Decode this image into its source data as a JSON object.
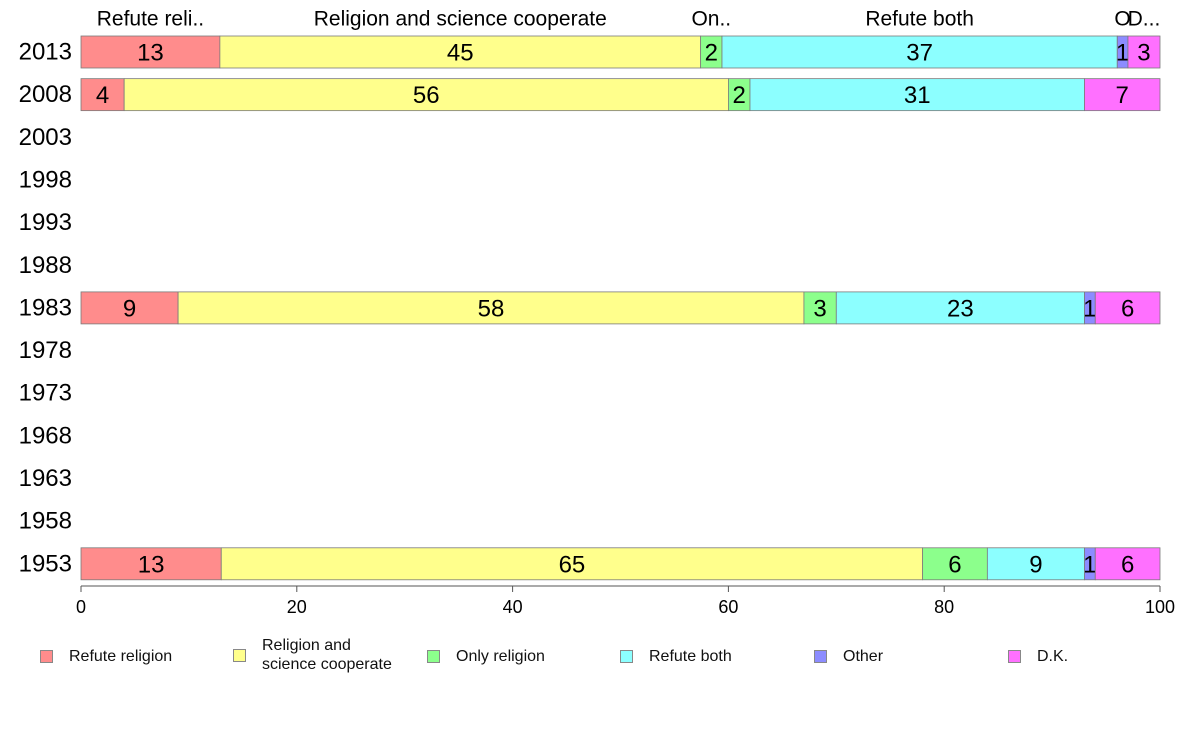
{
  "chart_data": {
    "type": "bar",
    "orientation": "horizontal",
    "stacked": true,
    "categories": [
      "2013",
      "2008",
      "2003",
      "1998",
      "1993",
      "1988",
      "1983",
      "1978",
      "1973",
      "1968",
      "1963",
      "1958",
      "1953"
    ],
    "series": [
      {
        "name": "Refute religion",
        "top_label": "Refute reli..",
        "color": "#ff8c8c",
        "values": [
          13,
          4,
          null,
          null,
          null,
          null,
          9,
          null,
          null,
          null,
          null,
          null,
          13
        ]
      },
      {
        "name": "Religion and science cooperate",
        "top_label": "Religion and science cooperate",
        "color": "#ffff8c",
        "values": [
          45,
          56,
          null,
          null,
          null,
          null,
          58,
          null,
          null,
          null,
          null,
          null,
          65
        ]
      },
      {
        "name": "Only religion",
        "top_label": "On..",
        "color": "#8cff8c",
        "values": [
          2,
          2,
          null,
          null,
          null,
          null,
          3,
          null,
          null,
          null,
          null,
          null,
          6
        ]
      },
      {
        "name": "Refute both",
        "top_label": "Refute both",
        "color": "#8cffff",
        "values": [
          37,
          31,
          null,
          null,
          null,
          null,
          23,
          null,
          null,
          null,
          null,
          null,
          9
        ]
      },
      {
        "name": "Other",
        "top_label": "O",
        "color": "#8c8cff",
        "values": [
          1,
          0,
          null,
          null,
          null,
          null,
          1,
          null,
          null,
          null,
          null,
          null,
          1
        ]
      },
      {
        "name": "D.K.",
        "top_label": "D...",
        "color": "#ff70ff",
        "values": [
          3,
          7,
          null,
          null,
          null,
          null,
          6,
          null,
          null,
          null,
          null,
          null,
          6
        ]
      }
    ],
    "xlim": [
      0,
      100
    ],
    "xticks": [
      0,
      20,
      40,
      60,
      80,
      100
    ],
    "title": "",
    "xlabel": "",
    "ylabel": "",
    "grid": false,
    "legend_position": "bottom"
  },
  "legend": {
    "items": [
      {
        "label": "Refute religion",
        "color": "#ff8c8c"
      },
      {
        "label": "Religion and\nscience cooperate",
        "color": "#ffff8c"
      },
      {
        "label": "Only religion",
        "color": "#8cff8c"
      },
      {
        "label": "Refute both",
        "color": "#8cffff"
      },
      {
        "label": "Other",
        "color": "#8c8cff"
      },
      {
        "label": "D.K.",
        "color": "#ff70ff"
      }
    ]
  }
}
